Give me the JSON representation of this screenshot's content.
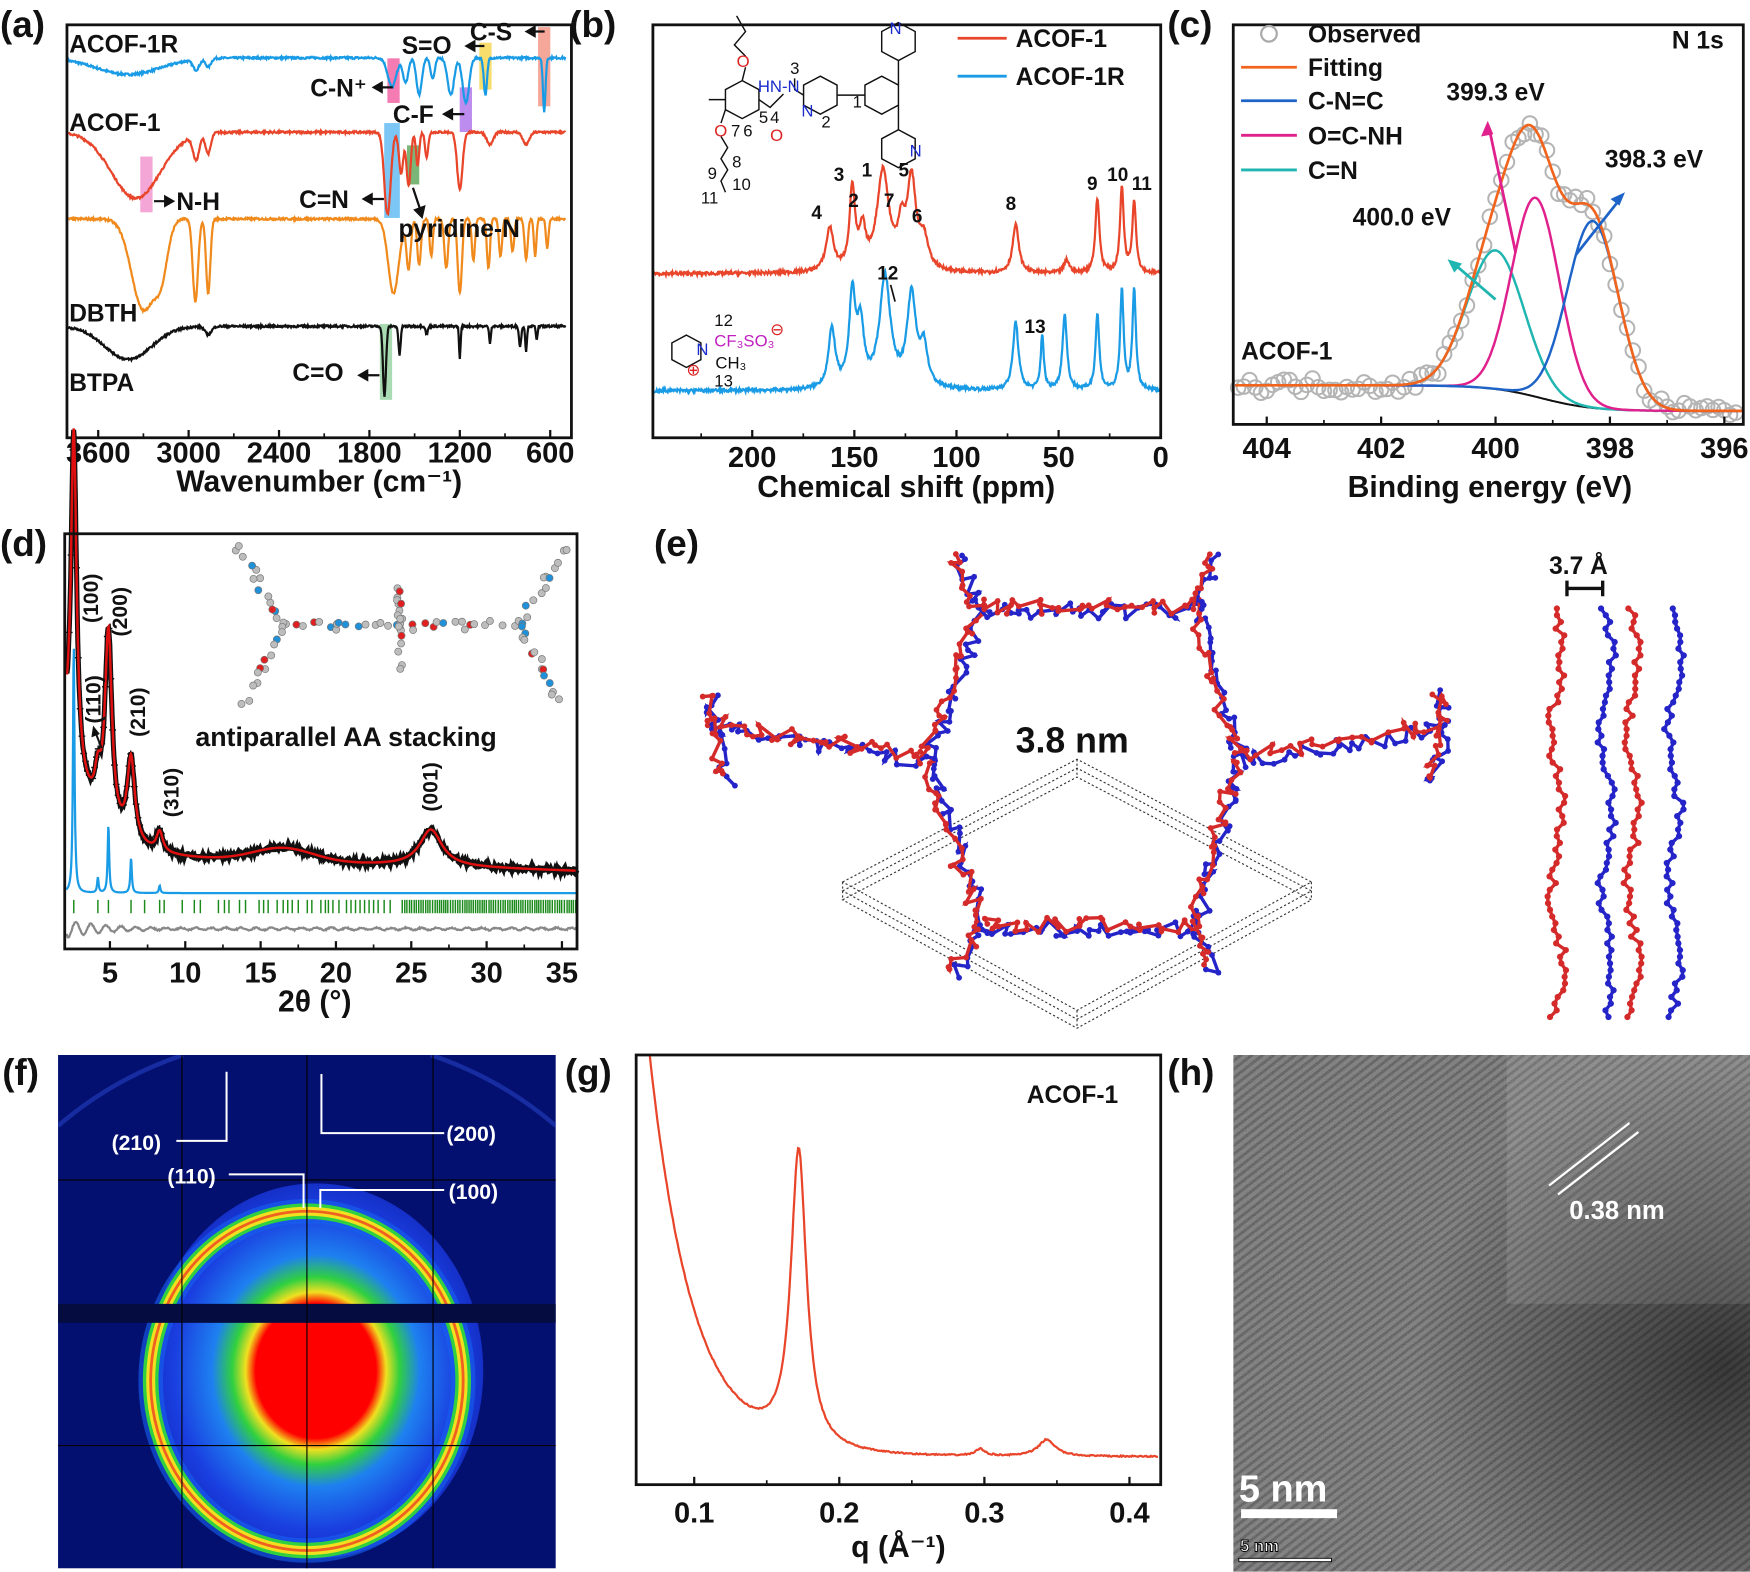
{
  "panel_labels": {
    "a": "(a)",
    "b": "(b)",
    "c": "(c)",
    "d": "(d)",
    "e": "(e)",
    "f": "(f)",
    "g": "(g)",
    "h": "(h)"
  },
  "chart_data": [
    {
      "panel": "a",
      "type": "line",
      "xlabel": "Wavenumber (cm⁻¹)",
      "ylabel": "",
      "xlim": [
        3800,
        500
      ],
      "xticks": [
        "3600",
        "3000",
        "2400",
        "1800",
        "1200",
        "600"
      ],
      "ylim": [
        0,
        100
      ],
      "series": [
        {
          "name": "ACOF-1R",
          "color": "#1a9be6",
          "baseline": 92,
          "dips": [
            [
              3400,
              4,
              300
            ],
            [
              2950,
              2.5,
              30
            ],
            [
              2870,
              2,
              25
            ],
            [
              1650,
              7,
              40
            ],
            [
              1560,
              6,
              25
            ],
            [
              1470,
              9,
              25
            ],
            [
              1380,
              5,
              20
            ],
            [
              1260,
              9,
              30
            ],
            [
              1160,
              11,
              30
            ],
            [
              1030,
              9,
              15
            ],
            [
              640,
              13,
              12
            ]
          ]
        },
        {
          "name": "ACOF-1",
          "color": "#e8452a",
          "baseline": 74,
          "dips": [
            [
              3350,
              16,
              230
            ],
            [
              2950,
              6,
              30
            ],
            [
              2870,
              5,
              25
            ],
            [
              1680,
              20,
              30
            ],
            [
              1590,
              10,
              20
            ],
            [
              1540,
              13,
              20
            ],
            [
              1480,
              8,
              15
            ],
            [
              1420,
              6,
              15
            ],
            [
              1200,
              14,
              25
            ],
            [
              1000,
              3,
              30
            ],
            [
              760,
              3,
              30
            ]
          ]
        },
        {
          "name": "DBTH",
          "color": "#f08a1c",
          "baseline": 53,
          "dips": [
            [
              3300,
              22,
              110
            ],
            [
              3180,
              10,
              60
            ],
            [
              2955,
              20,
              25
            ],
            [
              2870,
              18,
              20
            ],
            [
              1640,
              18,
              50
            ],
            [
              1540,
              12,
              20
            ],
            [
              1470,
              11,
              18
            ],
            [
              1390,
              9,
              15
            ],
            [
              1290,
              12,
              18
            ],
            [
              1200,
              18,
              20
            ],
            [
              1110,
              10,
              15
            ],
            [
              1010,
              12,
              15
            ],
            [
              930,
              9,
              15
            ],
            [
              850,
              8,
              15
            ],
            [
              760,
              10,
              15
            ],
            [
              700,
              9,
              12
            ],
            [
              620,
              7,
              12
            ]
          ]
        },
        {
          "name": "BTPA",
          "color": "#111111",
          "baseline": 27,
          "dips": [
            [
              3400,
              8,
              220
            ],
            [
              2870,
              2,
              30
            ],
            [
              1700,
              17,
              14
            ],
            [
              1600,
              7,
              10
            ],
            [
              1420,
              2,
              10
            ],
            [
              1200,
              8,
              7
            ],
            [
              1000,
              4,
              8
            ],
            [
              800,
              5,
              10
            ],
            [
              760,
              6,
              8
            ],
            [
              690,
              3,
              8
            ]
          ]
        }
      ],
      "series_labels": [
        "ACOF-1R",
        "ACOF-1",
        "DBTH",
        "BTPA"
      ],
      "bands": [
        {
          "label": "C-N⁺",
          "wavenumber": 1640,
          "color": "#f0509a"
        },
        {
          "label": "S=O",
          "wavenumber": 1030,
          "color": "#f5d23c"
        },
        {
          "label": "C-S",
          "wavenumber": 640,
          "color": "#f28a78"
        },
        {
          "label": "C-F",
          "wavenumber": 1160,
          "color": "#a566e8"
        },
        {
          "label": "N-H",
          "wavenumber": 3280,
          "color": "#f08ac8"
        },
        {
          "label": "C=N",
          "wavenumber": 1650,
          "color": "#4fb3f0"
        },
        {
          "label": "pyridine-N",
          "wavenumber": 1510,
          "color": "#4d9e4a"
        },
        {
          "label": "C=O",
          "wavenumber": 1690,
          "color": "#8ccf98"
        }
      ]
    },
    {
      "panel": "b",
      "type": "line",
      "xlabel": "Chemical shift (ppm)",
      "xlim": [
        240,
        0
      ],
      "xticks": [
        "200",
        "150",
        "100",
        "50",
        "0"
      ],
      "legend_position": "top-right",
      "series": [
        {
          "name": "ACOF-1",
          "color": "#e8452a",
          "peaks": [
            [
              162,
              0.33,
              2.2
            ],
            [
              151,
              0.62,
              1.6
            ],
            [
              146,
              0.28,
              1.8
            ],
            [
              136,
              0.76,
              3.5
            ],
            [
              127,
              0.28,
              2
            ],
            [
              122,
              0.68,
              2.6
            ],
            [
              116,
              0.22,
              2.5
            ],
            [
              71,
              0.37,
              1.8
            ],
            [
              46,
              0.1,
              1.5
            ],
            [
              31,
              0.57,
              1.2
            ],
            [
              19,
              0.65,
              1.1
            ],
            [
              13,
              0.55,
              1.1
            ]
          ]
        },
        {
          "name": "ACOF-1R",
          "color": "#1a9be6",
          "peaks": [
            [
              161,
              0.45,
              2
            ],
            [
              151,
              0.7,
              1.8
            ],
            [
              147,
              0.45,
              2
            ],
            [
              135,
              0.85,
              3.2
            ],
            [
              122,
              0.7,
              2.6
            ],
            [
              116,
              0.3,
              2.2
            ],
            [
              71,
              0.52,
              1.6
            ],
            [
              58,
              0.42,
              0.9
            ],
            [
              47,
              0.58,
              1.3
            ],
            [
              31,
              0.58,
              1.1
            ],
            [
              19,
              0.77,
              1
            ],
            [
              13,
              0.78,
              1
            ]
          ]
        }
      ],
      "peak_labels": [
        "4",
        "3",
        "2",
        "1",
        "7",
        "5",
        "6",
        "8",
        "9",
        "10",
        "11",
        "12",
        "13"
      ],
      "structure_labels": {
        "o_top": "O",
        "hn_n": "HN-N",
        "c3": "3",
        "n_pyr": "N",
        "c2": "2",
        "c1": "1",
        "c4": "4",
        "c5": "5",
        "o_co": "O",
        "c6": "6",
        "c7": "7",
        "o_bot": "O",
        "c8": "8",
        "c9": "9",
        "c10": "10",
        "c11": "11",
        "n_top": "N",
        "n_bot": "N",
        "c5b": "5",
        "r_12": "12",
        "r_cf3so3": "CF₃SO₃",
        "r_minus": "⊖",
        "r_n": "N",
        "r_ch3": "CH₃",
        "r_plus": "⊕",
        "r_13": "13"
      }
    },
    {
      "panel": "c",
      "type": "line",
      "xlabel": "Binding energy (eV)",
      "xlim": [
        404.6,
        395.6
      ],
      "xticks": [
        "404",
        "402",
        "400",
        "398",
        "396"
      ],
      "title_right": "N 1s",
      "sample_label": "ACOF-1",
      "legend_position": "top-left",
      "series": [
        {
          "name": "Observed",
          "style": "open-circles",
          "color": "#aaaaaa"
        },
        {
          "name": "Fitting",
          "color": "#f0641e"
        },
        {
          "name": "C-N=C",
          "color": "#1e64c8",
          "center": 398.3,
          "amplitude": 0.62,
          "sigma": 0.45
        },
        {
          "name": "O=C-NH",
          "color": "#e0208c",
          "center": 399.3,
          "amplitude": 0.66,
          "sigma": 0.42
        },
        {
          "name": "C=N",
          "color": "#1fb5b0",
          "center": 400.0,
          "amplitude": 0.46,
          "sigma": 0.5
        }
      ],
      "peak_annotations": [
        "399.3 eV",
        "398.3 eV",
        "400.0 eV"
      ]
    },
    {
      "panel": "d",
      "type": "line",
      "xlabel": "2θ (°)",
      "xlim": [
        2,
        36
      ],
      "xticks": [
        "5",
        "10",
        "15",
        "20",
        "25",
        "30",
        "35"
      ],
      "reflections": [
        {
          "hkl": "(100)",
          "two_theta": 2.6,
          "height": 300,
          "hwhm": 0.22
        },
        {
          "hkl": "(110)",
          "two_theta": 4.2,
          "height": 30,
          "hwhm": 0.25
        },
        {
          "hkl": "(200)",
          "two_theta": 4.9,
          "height": 175,
          "hwhm": 0.28
        },
        {
          "hkl": "(210)",
          "two_theta": 6.4,
          "height": 75,
          "hwhm": 0.3
        },
        {
          "hkl": "(310)",
          "two_theta": 8.3,
          "height": 18,
          "hwhm": 0.25
        },
        {
          "hkl": "(001)",
          "two_theta": 26.3,
          "height": 33,
          "hwhm": 0.9
        }
      ],
      "simulated_relative": [
        1.0,
        0.06,
        0.27,
        0.14,
        0.03
      ],
      "bragg_positions": [
        2.6,
        4.2,
        4.9,
        6.4,
        7.3,
        8.3,
        8.6,
        9.8,
        10.6,
        11.0,
        12.2,
        12.6,
        12.9,
        13.6,
        14.0,
        14.9,
        15.2,
        15.5,
        16.1,
        16.5,
        16.8,
        17.1,
        17.5,
        18.1,
        18.4,
        19.0,
        19.3,
        19.5,
        19.8,
        20.2,
        20.7,
        21.0,
        21.3,
        21.6,
        21.9,
        22.2,
        22.5,
        22.8,
        23.2,
        23.6
      ],
      "bragg_dense_range": [
        24.4,
        36
      ],
      "inset_caption": "antiparallel AA stacking",
      "series": [
        {
          "name": "",
          "style": "crosses",
          "color": "#111111"
        },
        {
          "name": "",
          "color": "#e01010"
        },
        {
          "name": "",
          "color": "#1a9be6"
        },
        {
          "name": "",
          "style": "ticks",
          "color": "#1a8a1a"
        },
        {
          "name": "",
          "color": "#888888"
        }
      ]
    },
    {
      "panel": "g",
      "type": "line",
      "xlabel": "q (Å⁻¹)",
      "xlim": [
        0.055,
        0.42
      ],
      "xticks": [
        "0.1",
        "0.2",
        "0.3",
        "0.4"
      ],
      "sample_label": "ACOF-1",
      "series": [
        {
          "name": "",
          "color": "#e8452a",
          "peaks": [
            [
              0.172,
              265,
              0.0065
            ],
            [
              0.297,
              6,
              0.004
            ],
            [
              0.343,
              15,
              0.007
            ]
          ]
        }
      ]
    }
  ],
  "panel_e": {
    "pore_size": "3.8 nm",
    "interlayer": "3.7 Å",
    "colors": {
      "layer_a": "#d42a2a",
      "layer_b": "#2424c8"
    }
  },
  "panel_f": {
    "labels": [
      "(210)",
      "(200)",
      "(110)",
      "(100)"
    ]
  },
  "panel_h": {
    "fringe_spacing": "0.38 nm",
    "scale_bar": "5 nm",
    "scale_bar_small": "5 nm"
  }
}
